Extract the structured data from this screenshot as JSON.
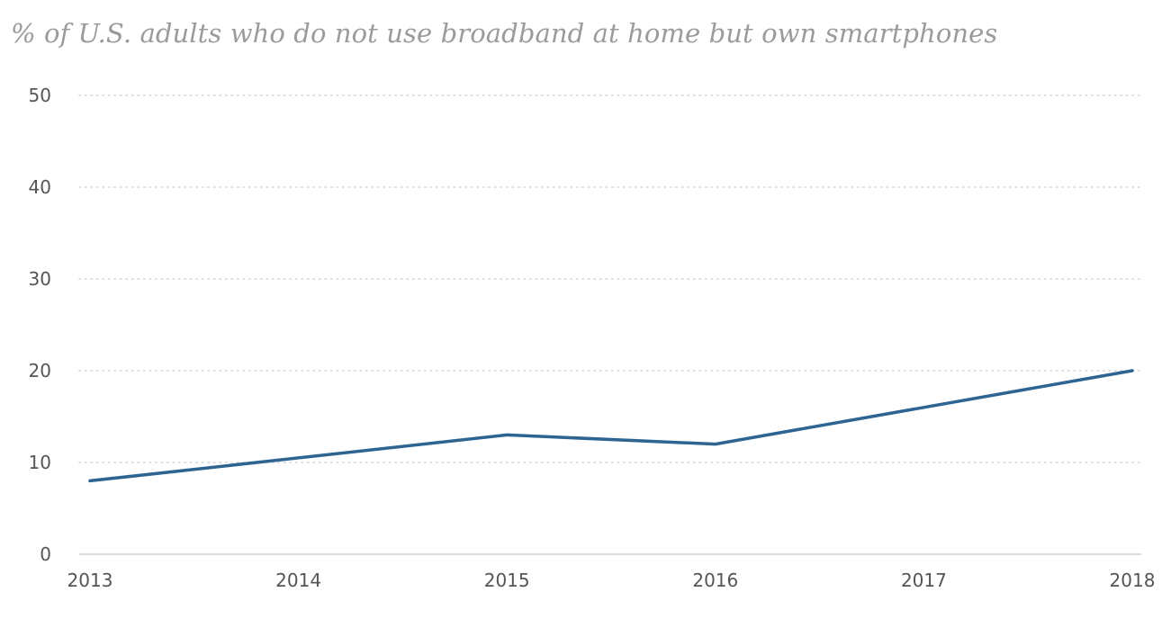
{
  "chart_data": {
    "type": "line",
    "title": "% of U.S. adults who do not use broadband at home but own smartphones",
    "xlabel": "",
    "ylabel": "",
    "x": [
      "2013",
      "2014",
      "2015",
      "2016",
      "2017",
      "2018"
    ],
    "series": [
      {
        "values": [
          8,
          10.5,
          13,
          12,
          16,
          20
        ],
        "color": "#2e6491"
      }
    ],
    "ylim": [
      0,
      50
    ],
    "yticks": [
      "0",
      "10",
      "20",
      "30",
      "40",
      "50"
    ],
    "grid": true,
    "gridStyle": "dotted",
    "legend": "none"
  }
}
